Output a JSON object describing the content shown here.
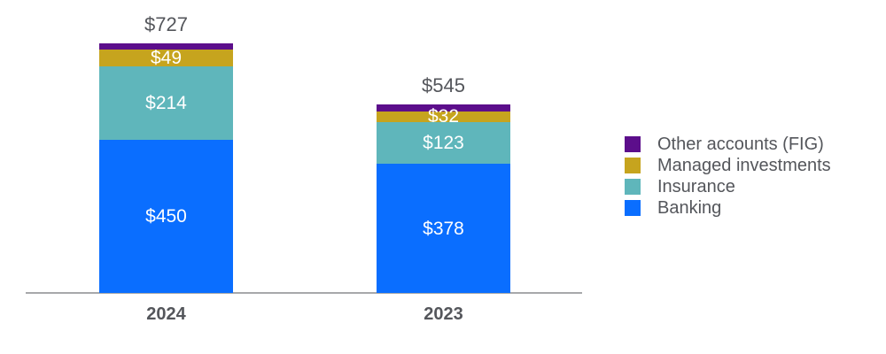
{
  "chart_data": {
    "type": "bar",
    "stacked": true,
    "orientation": "vertical",
    "categories": [
      "2024",
      "2023"
    ],
    "totals": [
      727,
      545
    ],
    "total_labels": [
      "$727",
      "$545"
    ],
    "series": [
      {
        "name": "Banking",
        "color": "#0A6EFF",
        "values": [
          450,
          378
        ],
        "labels": [
          "$450",
          "$378"
        ]
      },
      {
        "name": "Insurance",
        "color": "#5FB6BB",
        "values": [
          214,
          123
        ],
        "labels": [
          "$214",
          "$123"
        ]
      },
      {
        "name": "Managed investments",
        "color": "#C6A41E",
        "values": [
          49,
          32
        ],
        "labels": [
          "$49",
          "$32"
        ]
      },
      {
        "name": "Other accounts (FIG)",
        "color": "#5C0E8B",
        "values": [
          null,
          null
        ],
        "labels": [
          "",
          ""
        ]
      }
    ],
    "legend": [
      "Other accounts (FIG)",
      "Managed investments",
      "Insurance",
      "Banking"
    ],
    "legend_position": "right",
    "x_axis_labels": [
      "2024",
      "2023"
    ],
    "grid": false,
    "y_axis_visible": false
  },
  "style": {
    "text_color": "#54565B",
    "axis_color": "#A7A8AA",
    "background": "#ffffff"
  }
}
